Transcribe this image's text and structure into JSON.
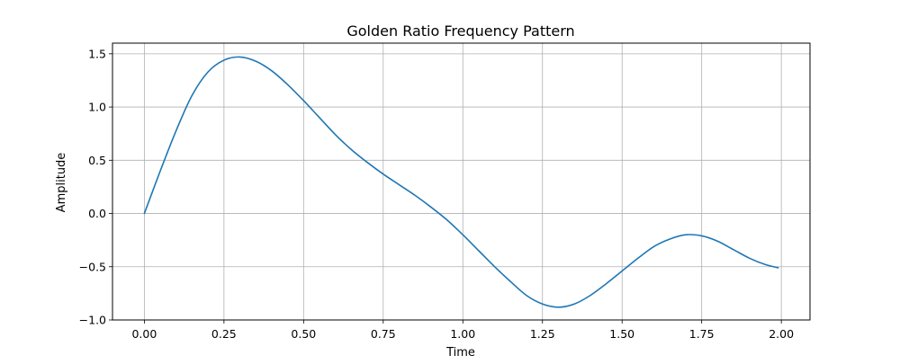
{
  "chart_data": {
    "type": "line",
    "title": "Golden Ratio Frequency Pattern",
    "xlabel": "Time",
    "ylabel": "Amplitude",
    "xlim": [
      -0.1,
      2.09
    ],
    "ylim": [
      -1.0,
      1.6
    ],
    "grid": true,
    "x_ticks": [
      0.0,
      0.25,
      0.5,
      0.75,
      1.0,
      1.25,
      1.5,
      1.75,
      2.0
    ],
    "x_tick_labels": [
      "0.00",
      "0.25",
      "0.50",
      "0.75",
      "1.00",
      "1.25",
      "1.50",
      "1.75",
      "2.00"
    ],
    "y_ticks": [
      -1.0,
      -0.5,
      0.0,
      0.5,
      1.0,
      1.5
    ],
    "y_tick_labels": [
      "−1.0",
      "−0.5",
      "0.0",
      "0.5",
      "1.0",
      "1.5"
    ],
    "series": [
      {
        "color": "#1f77b4",
        "x": [
          0.0,
          0.05,
          0.1,
          0.15,
          0.2,
          0.25,
          0.3,
          0.35,
          0.4,
          0.45,
          0.5,
          0.55,
          0.6,
          0.65,
          0.7,
          0.75,
          0.8,
          0.85,
          0.9,
          0.95,
          1.0,
          1.05,
          1.1,
          1.15,
          1.2,
          1.25,
          1.3,
          1.35,
          1.4,
          1.45,
          1.5,
          1.55,
          1.6,
          1.65,
          1.7,
          1.75,
          1.8,
          1.85,
          1.9,
          1.95,
          1.99
        ],
        "y": [
          0.0,
          0.4,
          0.78,
          1.11,
          1.33,
          1.44,
          1.47,
          1.43,
          1.34,
          1.21,
          1.06,
          0.9,
          0.74,
          0.6,
          0.48,
          0.37,
          0.27,
          0.17,
          0.06,
          -0.06,
          -0.2,
          -0.35,
          -0.5,
          -0.64,
          -0.77,
          -0.85,
          -0.88,
          -0.85,
          -0.77,
          -0.66,
          -0.54,
          -0.42,
          -0.31,
          -0.24,
          -0.2,
          -0.21,
          -0.26,
          -0.34,
          -0.42,
          -0.48,
          -0.51
        ]
      }
    ]
  }
}
